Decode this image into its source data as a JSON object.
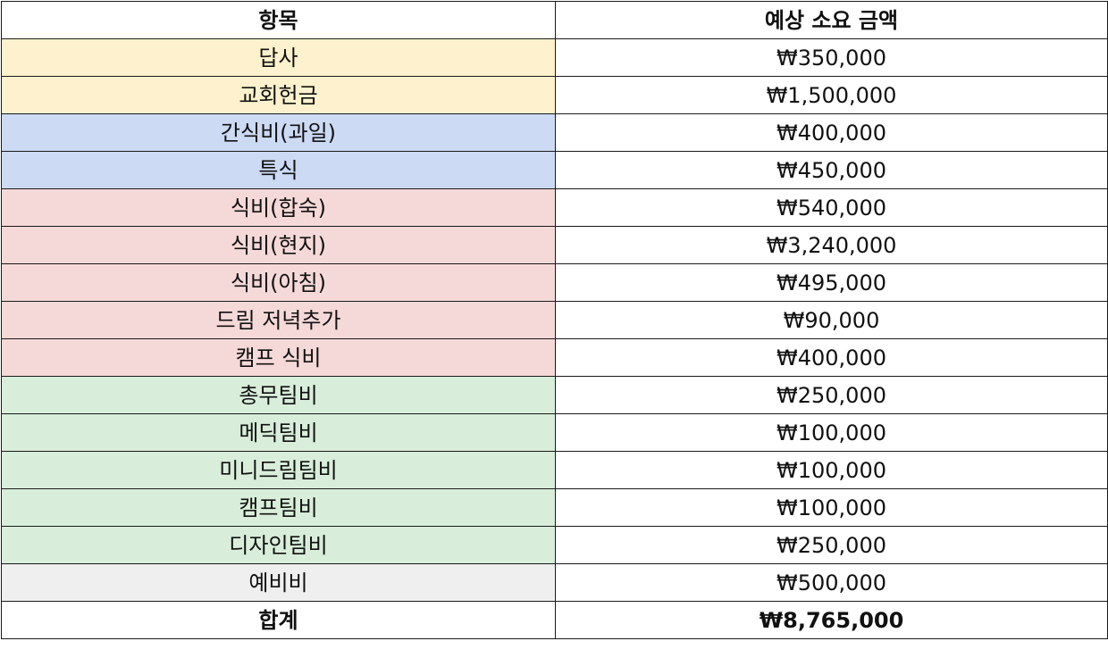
{
  "table": {
    "headers": {
      "item": "항목",
      "amount": "예상 소요 금액"
    },
    "colors": {
      "yellow": "#fdf2cd",
      "blue": "#ccdaf4",
      "red": "#f5d9d8",
      "green": "#d8eedb",
      "gray": "#efefef",
      "border": "#1a1a1a"
    },
    "rows": [
      {
        "item": "답사",
        "amount": "₩350,000",
        "color": "yellow"
      },
      {
        "item": "교회헌금",
        "amount": "₩1,500,000",
        "color": "yellow"
      },
      {
        "item": "간식비(과일)",
        "amount": "₩400,000",
        "color": "blue"
      },
      {
        "item": "특식",
        "amount": "₩450,000",
        "color": "blue"
      },
      {
        "item": "식비(합숙)",
        "amount": "₩540,000",
        "color": "red"
      },
      {
        "item": "식비(현지)",
        "amount": "₩3,240,000",
        "color": "red"
      },
      {
        "item": "식비(아침)",
        "amount": "₩495,000",
        "color": "red"
      },
      {
        "item": "드림 저녁추가",
        "amount": "₩90,000",
        "color": "red"
      },
      {
        "item": "캠프 식비",
        "amount": "₩400,000",
        "color": "red"
      },
      {
        "item": "총무팀비",
        "amount": "₩250,000",
        "color": "green"
      },
      {
        "item": "메딕팀비",
        "amount": "₩100,000",
        "color": "green"
      },
      {
        "item": "미니드림팀비",
        "amount": "₩100,000",
        "color": "green"
      },
      {
        "item": "캠프팀비",
        "amount": "₩100,000",
        "color": "green"
      },
      {
        "item": "디자인팀비",
        "amount": "₩250,000",
        "color": "green"
      },
      {
        "item": "예비비",
        "amount": "₩500,000",
        "color": "gray"
      }
    ],
    "total": {
      "label": "합계",
      "amount": "₩8,765,000"
    }
  }
}
